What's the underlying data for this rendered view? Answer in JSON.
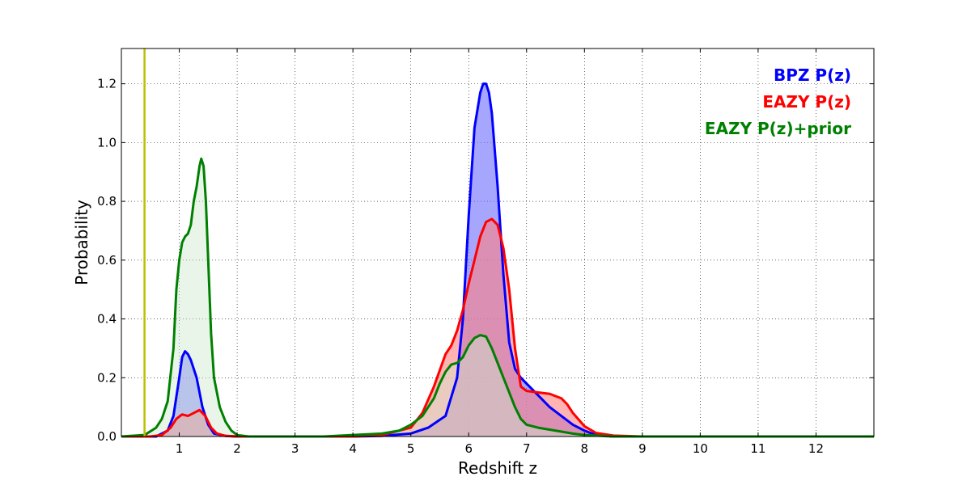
{
  "chart_data": {
    "type": "area",
    "xlabel": "Redshift z",
    "ylabel": "Probability",
    "xlim": [
      0,
      13
    ],
    "ylim": [
      0,
      1.32
    ],
    "xticks": [
      1,
      2,
      3,
      4,
      5,
      6,
      7,
      8,
      9,
      10,
      11,
      12
    ],
    "yticks": [
      0.0,
      0.2,
      0.4,
      0.6,
      0.8,
      1.0,
      1.2
    ],
    "grid": true,
    "legend_position": "top-right",
    "vline": {
      "x": 0.4,
      "color": "#bfbf00"
    },
    "series": [
      {
        "name": "BPZ P(z)",
        "color": "#0000ff",
        "fill": "#6a6aff",
        "x": [
          0,
          0.6,
          0.8,
          0.9,
          1.0,
          1.05,
          1.1,
          1.15,
          1.2,
          1.3,
          1.4,
          1.5,
          1.6,
          1.8,
          2.0,
          4.0,
          4.5,
          5.0,
          5.3,
          5.6,
          5.8,
          5.9,
          6.0,
          6.1,
          6.2,
          6.25,
          6.3,
          6.35,
          6.4,
          6.5,
          6.6,
          6.7,
          6.8,
          6.9,
          7.0,
          7.2,
          7.4,
          7.6,
          7.8,
          8.0,
          8.2,
          8.5,
          13
        ],
        "y": [
          0,
          0,
          0.02,
          0.07,
          0.2,
          0.27,
          0.29,
          0.28,
          0.26,
          0.2,
          0.1,
          0.04,
          0.01,
          0.002,
          0,
          0,
          0.002,
          0.01,
          0.03,
          0.07,
          0.2,
          0.4,
          0.75,
          1.05,
          1.17,
          1.2,
          1.2,
          1.17,
          1.1,
          0.85,
          0.55,
          0.32,
          0.23,
          0.2,
          0.18,
          0.14,
          0.1,
          0.07,
          0.04,
          0.02,
          0.005,
          0,
          0
        ]
      },
      {
        "name": "EAZY P(z)",
        "color": "#ff0000",
        "fill": "#ff8080",
        "x": [
          0,
          0.5,
          0.7,
          0.85,
          0.95,
          1.05,
          1.15,
          1.25,
          1.35,
          1.45,
          1.55,
          1.65,
          1.8,
          2.0,
          4.0,
          4.5,
          5.0,
          5.2,
          5.4,
          5.6,
          5.7,
          5.8,
          5.9,
          6.0,
          6.1,
          6.2,
          6.3,
          6.4,
          6.5,
          6.6,
          6.7,
          6.8,
          6.9,
          7.0,
          7.2,
          7.4,
          7.6,
          7.7,
          7.8,
          8.0,
          8.2,
          8.5,
          9.0,
          13
        ],
        "y": [
          0,
          0,
          0.005,
          0.03,
          0.06,
          0.075,
          0.07,
          0.08,
          0.09,
          0.07,
          0.03,
          0.01,
          0.002,
          0,
          0,
          0.005,
          0.03,
          0.08,
          0.17,
          0.28,
          0.31,
          0.36,
          0.43,
          0.52,
          0.6,
          0.68,
          0.73,
          0.74,
          0.72,
          0.64,
          0.5,
          0.3,
          0.17,
          0.155,
          0.15,
          0.145,
          0.13,
          0.11,
          0.08,
          0.035,
          0.012,
          0.003,
          0,
          0
        ]
      },
      {
        "name": "EAZY P(z)+prior",
        "color": "#008000",
        "fill": "#cfe8cf",
        "x": [
          0,
          0.4,
          0.6,
          0.7,
          0.8,
          0.9,
          0.95,
          1.0,
          1.05,
          1.1,
          1.15,
          1.2,
          1.25,
          1.3,
          1.35,
          1.38,
          1.42,
          1.46,
          1.5,
          1.55,
          1.6,
          1.7,
          1.8,
          1.9,
          2.0,
          2.2,
          3.5,
          4.0,
          4.5,
          4.8,
          5.0,
          5.2,
          5.4,
          5.5,
          5.6,
          5.7,
          5.8,
          5.9,
          6.0,
          6.1,
          6.2,
          6.3,
          6.4,
          6.5,
          6.6,
          6.7,
          6.8,
          6.9,
          7.0,
          7.2,
          7.5,
          7.8,
          8.0,
          8.5,
          13
        ],
        "y": [
          0,
          0.005,
          0.03,
          0.06,
          0.12,
          0.3,
          0.5,
          0.6,
          0.66,
          0.68,
          0.69,
          0.72,
          0.8,
          0.85,
          0.92,
          0.945,
          0.92,
          0.8,
          0.6,
          0.35,
          0.2,
          0.1,
          0.05,
          0.02,
          0.005,
          0,
          0,
          0.005,
          0.01,
          0.02,
          0.04,
          0.07,
          0.13,
          0.18,
          0.22,
          0.245,
          0.25,
          0.27,
          0.31,
          0.335,
          0.345,
          0.34,
          0.3,
          0.25,
          0.2,
          0.15,
          0.1,
          0.06,
          0.04,
          0.03,
          0.02,
          0.01,
          0.005,
          0,
          0
        ]
      }
    ]
  }
}
